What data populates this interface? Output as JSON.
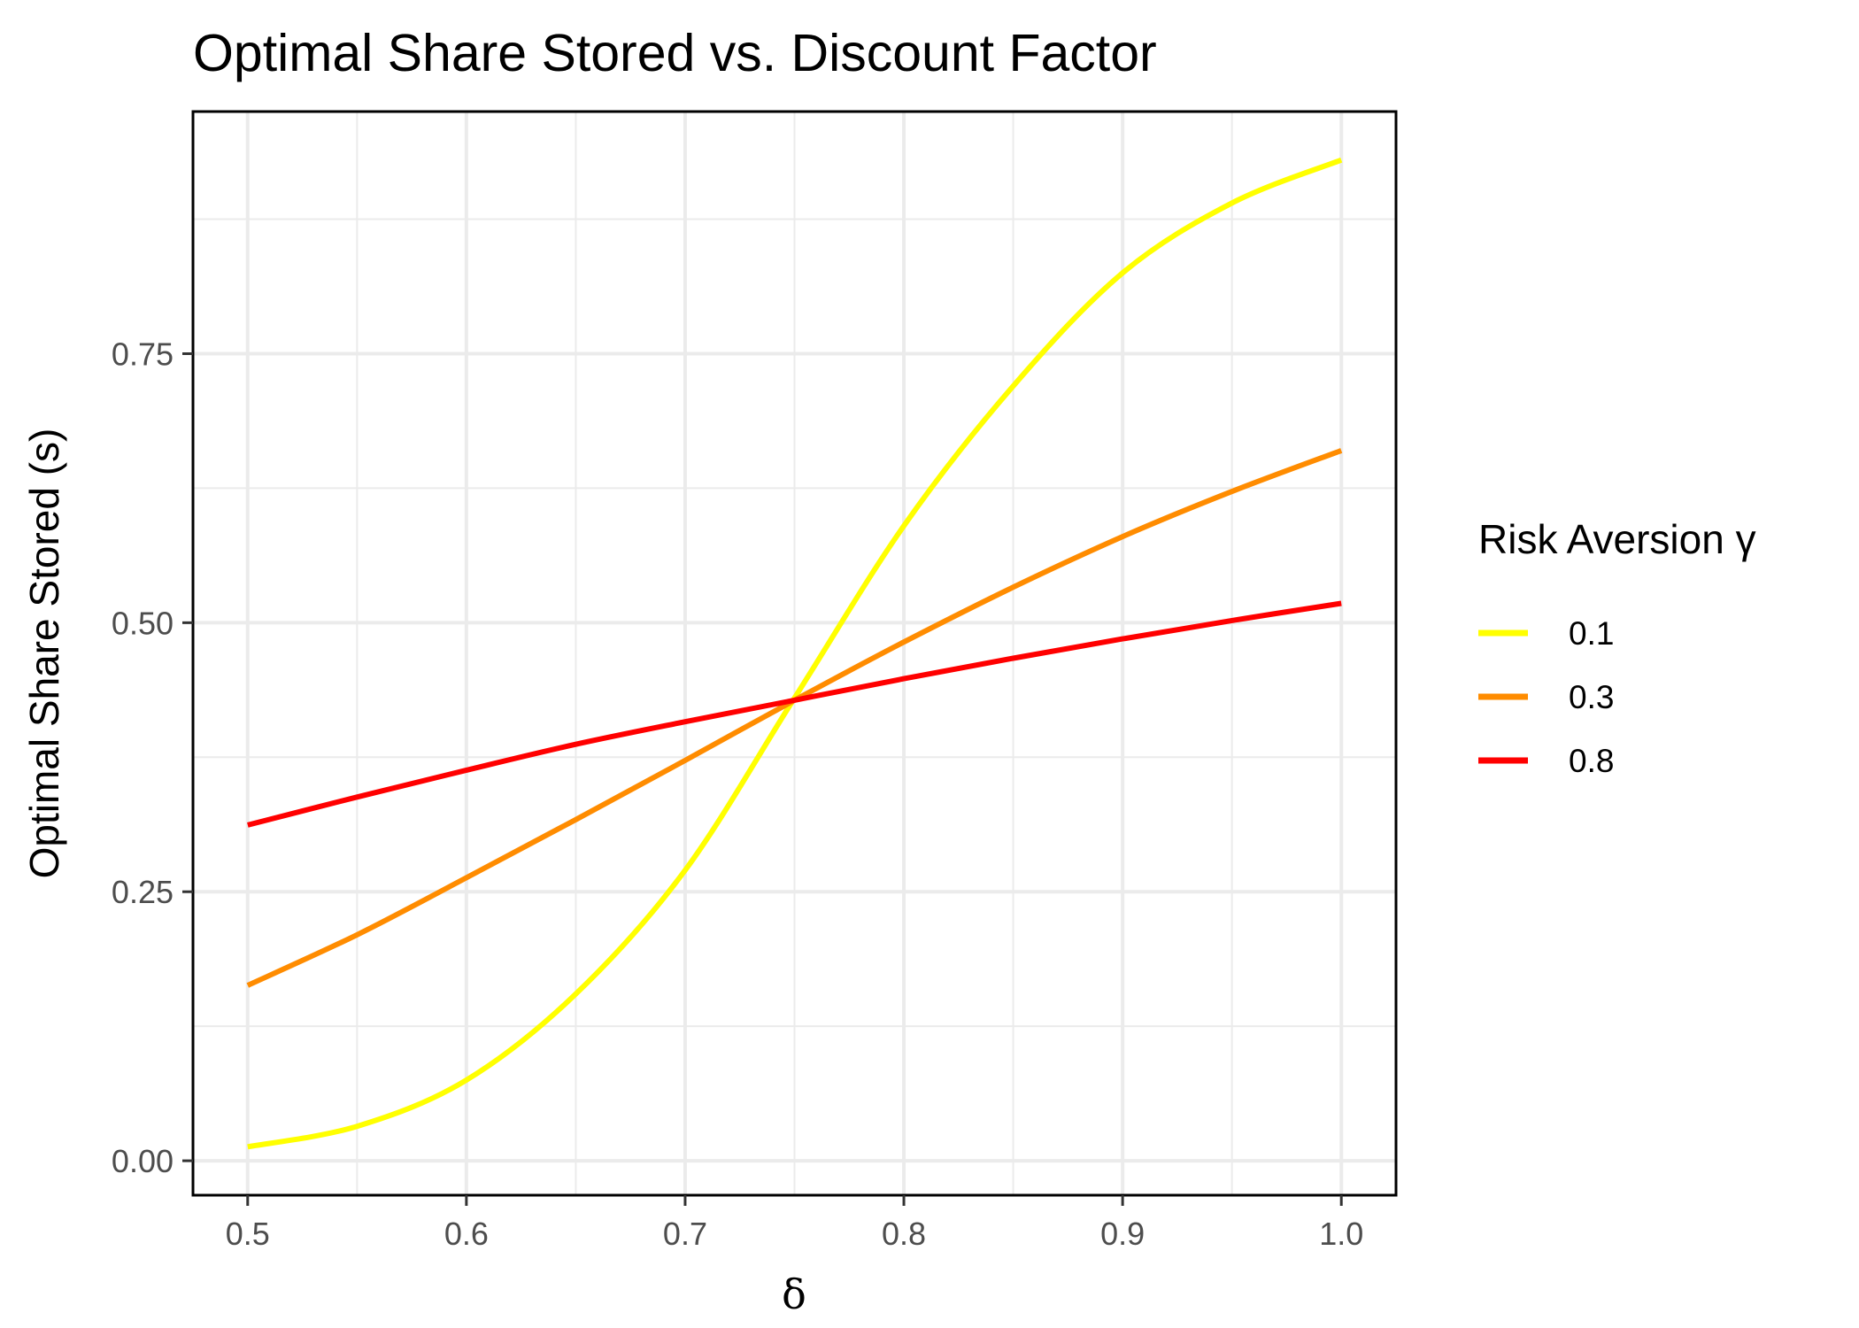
{
  "chart_data": {
    "type": "line",
    "title": "Optimal Share Stored vs. Discount Factor",
    "xlabel": "δ",
    "ylabel": "Optimal Share Stored (s)",
    "xlim": [
      0.475,
      1.025
    ],
    "ylim": [
      -0.032,
      0.975
    ],
    "x_ticks": [
      0.5,
      0.6,
      0.7,
      0.8,
      0.9,
      1.0
    ],
    "x_tick_labels": [
      "0.5",
      "0.6",
      "0.7",
      "0.8",
      "0.9",
      "1.0"
    ],
    "y_ticks": [
      0.0,
      0.25,
      0.5,
      0.75
    ],
    "y_tick_labels": [
      "0.00",
      "0.25",
      "0.50",
      "0.75"
    ],
    "grid": true,
    "legend": {
      "title": "Risk Aversion γ",
      "position": "right"
    },
    "x": [
      0.5,
      0.55,
      0.6,
      0.65,
      0.7,
      0.75,
      0.8,
      0.85,
      0.9,
      0.95,
      1.0
    ],
    "series": [
      {
        "name": "0.1",
        "color": "#ffff00",
        "values": [
          0.013,
          0.032,
          0.075,
          0.155,
          0.27,
          0.43,
          0.59,
          0.72,
          0.825,
          0.89,
          0.93
        ]
      },
      {
        "name": "0.3",
        "color": "#ff8c00",
        "values": [
          0.163,
          0.21,
          0.263,
          0.317,
          0.372,
          0.428,
          0.482,
          0.533,
          0.58,
          0.622,
          0.66
        ]
      },
      {
        "name": "0.8",
        "color": "#ff0000",
        "values": [
          0.312,
          0.338,
          0.363,
          0.387,
          0.408,
          0.428,
          0.448,
          0.467,
          0.485,
          0.502,
          0.518
        ]
      }
    ]
  }
}
